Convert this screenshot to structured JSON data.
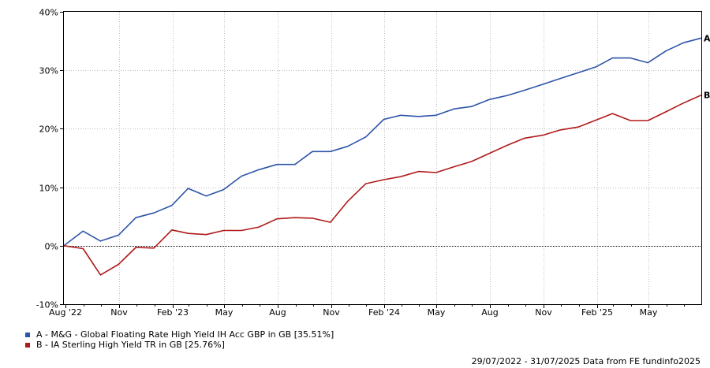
{
  "chart_data": {
    "type": "line",
    "ylim": [
      -10,
      40
    ],
    "y_ticks": [
      -10,
      0,
      10,
      20,
      30,
      40
    ],
    "y_tick_labels": [
      "-10%",
      "0%",
      "10%",
      "20%",
      "30%",
      "40%"
    ],
    "x_tick_labels": [
      "Aug '22",
      "Nov",
      "Feb '23",
      "May",
      "Aug",
      "Nov",
      "Feb '24",
      "May",
      "Aug",
      "Nov",
      "Feb '25",
      "May"
    ],
    "grid": true,
    "legend_position": "bottom-left",
    "x": [
      "2022-07-29",
      "2022-08-31",
      "2022-09-30",
      "2022-10-31",
      "2022-11-30",
      "2022-12-31",
      "2023-01-31",
      "2023-02-28",
      "2023-03-31",
      "2023-04-30",
      "2023-05-31",
      "2023-06-30",
      "2023-07-31",
      "2023-08-31",
      "2023-09-30",
      "2023-10-31",
      "2023-11-30",
      "2023-12-31",
      "2024-01-31",
      "2024-02-29",
      "2024-03-31",
      "2024-04-30",
      "2024-05-31",
      "2024-06-30",
      "2024-07-31",
      "2024-08-31",
      "2024-09-30",
      "2024-10-31",
      "2024-11-30",
      "2024-12-31",
      "2025-01-31",
      "2025-02-28",
      "2025-03-31",
      "2025-04-30",
      "2025-05-31",
      "2025-06-30",
      "2025-07-31"
    ],
    "series": [
      {
        "name": "A - M&G - Global Floating Rate High Yield IH Acc GBP in GB [35.51%]",
        "end_label": "A",
        "color": "#2e54a8",
        "values": [
          0,
          2.5,
          0.8,
          1.8,
          4.8,
          5.6,
          6.9,
          9.8,
          8.5,
          9.6,
          11.9,
          13.0,
          13.9,
          13.9,
          16.1,
          16.1,
          17.0,
          18.6,
          21.6,
          22.3,
          22.1,
          22.3,
          23.4,
          23.8,
          25.0,
          25.7,
          26.6,
          27.6,
          28.6,
          29.6,
          30.6,
          32.1,
          32.1,
          31.3,
          33.3,
          34.7,
          35.51
        ]
      },
      {
        "name": "B - IA Sterling High Yield TR in GB [25.76%]",
        "end_label": "B",
        "color": "#b01a1a",
        "values": [
          0,
          -0.5,
          -5.0,
          -3.2,
          -0.3,
          -0.4,
          2.7,
          2.1,
          1.9,
          2.6,
          2.6,
          3.2,
          4.6,
          4.8,
          4.7,
          4.0,
          7.6,
          10.6,
          11.3,
          11.8,
          12.7,
          12.5,
          13.5,
          14.4,
          15.8,
          17.2,
          18.4,
          18.9,
          19.8,
          20.3,
          21.5,
          22.6,
          21.4,
          21.4,
          22.9,
          24.4,
          25.76
        ]
      }
    ]
  },
  "footer": "29/07/2022 - 31/07/2025 Data from FE fundinfo2025"
}
